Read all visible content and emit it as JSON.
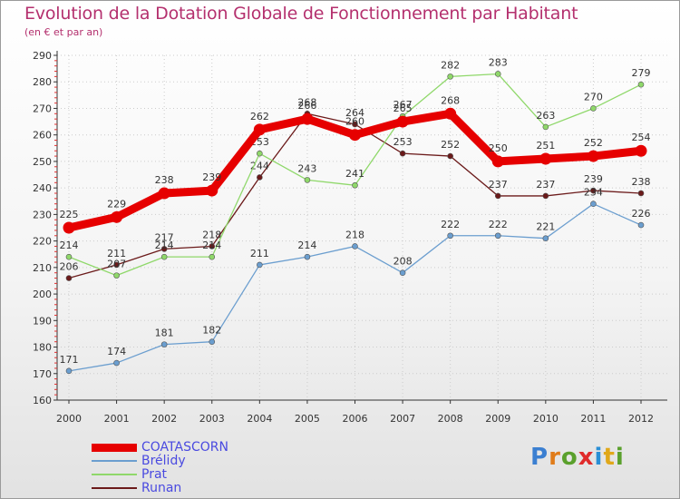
{
  "title": "Evolution de la Dotation Globale de Fonctionnement par Habitant",
  "subtitle": "(en € et par an)",
  "logo": {
    "letters": [
      "P",
      "r",
      "o",
      "x",
      "i",
      "t",
      "i"
    ],
    "colors": [
      "#3b7fd1",
      "#e07c1a",
      "#5aa02c",
      "#e02b2b",
      "#2a8fd6",
      "#e0a81a",
      "#5aa02c"
    ]
  },
  "chart_data": {
    "type": "line",
    "title": "Evolution de la Dotation Globale de Fonctionnement par Habitant",
    "ylabel": "(en € et par an)",
    "xlabel": "",
    "x": [
      "2000",
      "2001",
      "2002",
      "2003",
      "2004",
      "2005",
      "2006",
      "2007",
      "2008",
      "2009",
      "2010",
      "2011",
      "2012"
    ],
    "ylim": [
      160,
      290
    ],
    "yticks": [
      160,
      170,
      180,
      190,
      200,
      210,
      220,
      230,
      240,
      250,
      260,
      270,
      280,
      290
    ],
    "legend_position": "bottom-left",
    "series": [
      {
        "name": "Runan",
        "color": "#6b1a1a",
        "values": [
          206,
          211,
          217,
          218,
          244,
          268,
          264,
          253,
          252,
          237,
          237,
          239,
          238
        ],
        "labels": [
          "206",
          "211",
          "217",
          "218",
          "244",
          "268",
          "264",
          "253",
          "252",
          "237",
          "237",
          "239",
          "238"
        ]
      },
      {
        "name": "Brélidy",
        "color": "#6b9ecf",
        "values": [
          171,
          174,
          181,
          182,
          211,
          214,
          218,
          208,
          222,
          222,
          221,
          234,
          226
        ],
        "labels": [
          "171",
          "174",
          "181",
          "182",
          "211",
          "214",
          "218",
          "208",
          "222",
          "222",
          "221",
          "234",
          "226"
        ]
      },
      {
        "name": "Prat",
        "color": "#8fd86a",
        "values": [
          214,
          207,
          214,
          214,
          253,
          243,
          241,
          267,
          282,
          283,
          263,
          270,
          279
        ],
        "labels": [
          "214",
          "207",
          "214",
          "214",
          "253",
          "243",
          "241",
          "267",
          "282",
          "283",
          "263",
          "270",
          "279"
        ]
      },
      {
        "name": "COATASCORN",
        "color": "#e60000",
        "values": [
          225,
          229,
          238,
          239,
          262,
          266,
          260,
          265,
          268,
          250,
          251,
          252,
          254
        ],
        "labels": [
          "225",
          "229",
          "238",
          "239",
          "262",
          "266",
          "260",
          "265",
          "268",
          "250",
          "251",
          "252",
          "254"
        ]
      }
    ]
  },
  "legend": [
    {
      "name": "COATASCORN",
      "color": "#e60000",
      "label_color": "#4a4ae0"
    },
    {
      "name": "Brélidy",
      "color": "#6b9ecf",
      "label_color": "#4a4ae0"
    },
    {
      "name": "Prat",
      "color": "#8fd86a",
      "label_color": "#4a4ae0"
    },
    {
      "name": "Runan",
      "color": "#6b1a1a",
      "label_color": "#4a4ae0"
    }
  ]
}
